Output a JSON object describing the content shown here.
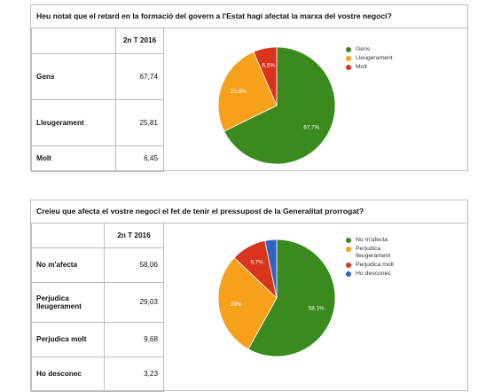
{
  "panels": [
    {
      "title": "Heu notat que el retard en la formació del govern a l'Estat hagi afectat la marxa del vostre negoci?",
      "column_header": "2n T 2016",
      "rows": [
        {
          "label": "Gens",
          "value": "67,74"
        },
        {
          "label": "Lleugerament",
          "value": "25,81"
        },
        {
          "label": "Molt",
          "value": "6,45"
        }
      ],
      "legend": [
        "Gens",
        "Lleugerament",
        "Molt"
      ]
    },
    {
      "title": "Creieu que afecta el vostre negoci el fet de tenir el pressupost de la Generalitat prorrogat?",
      "column_header": "2n T 2016",
      "rows": [
        {
          "label": "No m'afecta",
          "value": "58,06"
        },
        {
          "label": "Perjudica lleugerament",
          "value": "29,03"
        },
        {
          "label": "Perjudica molt",
          "value": "9,68"
        },
        {
          "label": "Ho desconec",
          "value": "3,23"
        }
      ],
      "legend": [
        "No m'afecta",
        "Perjudica lleugerament",
        "Perjudica molt",
        "Ho desconec"
      ]
    }
  ],
  "colors": [
    "#3a8a1d",
    "#f7a11a",
    "#d9341c",
    "#2e63c4"
  ],
  "chart_data": [
    {
      "type": "pie",
      "title": "Heu notat que el retard en la formació del govern a l'Estat hagi afectat la marxa del vostre negoci?",
      "categories": [
        "Gens",
        "Lleugerament",
        "Molt"
      ],
      "values": [
        67.74,
        25.81,
        6.45
      ],
      "slice_labels": [
        "67,7%",
        "25,8%",
        "6,5%"
      ],
      "legend_position": "right"
    },
    {
      "type": "pie",
      "title": "Creieu que afecta el vostre negoci el fet de tenir el pressupost de la Generalitat prorrogat?",
      "categories": [
        "No m'afecta",
        "Perjudica lleugerament",
        "Perjudica molt",
        "Ho desconec"
      ],
      "values": [
        58.06,
        29.03,
        9.68,
        3.23
      ],
      "slice_labels": [
        "58,1%",
        "29%",
        "9,7%",
        ""
      ],
      "legend_position": "right"
    }
  ]
}
